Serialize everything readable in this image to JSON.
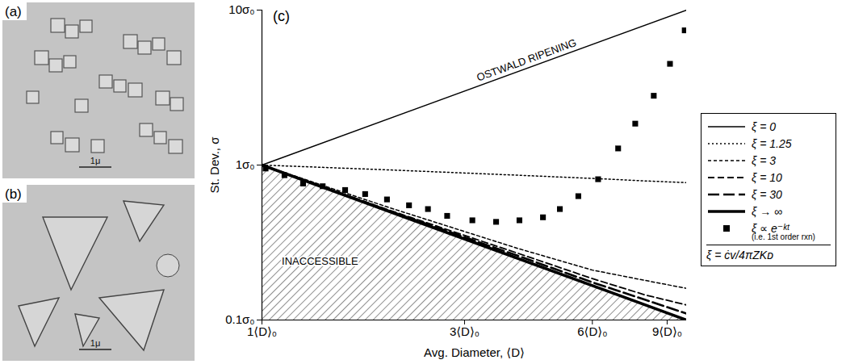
{
  "micrographs": [
    {
      "label": "(a)",
      "scale_bar": "1μ"
    },
    {
      "label": "(b)",
      "scale_bar": "1μ"
    }
  ],
  "chart_data": {
    "type": "line",
    "panel_label": "(c)",
    "x_label": "Avg. Diameter, ⟨D⟩",
    "y_label": "St. Dev., σ",
    "log": true,
    "grid": false,
    "legend": "right",
    "xlim": [
      1,
      10
    ],
    "ylim": [
      0.1,
      10
    ],
    "xticks": [
      {
        "value": 1,
        "label": "1⟨D⟩₀"
      },
      {
        "value": 3,
        "label": "3⟨D⟩₀"
      },
      {
        "value": 6,
        "label": "6⟨D⟩₀"
      },
      {
        "value": 9,
        "label": "9⟨D⟩₀"
      }
    ],
    "yticks": [
      {
        "value": 0.1,
        "label": "0.1σ₀"
      },
      {
        "value": 1,
        "label": "1σ₀"
      },
      {
        "value": 10,
        "label": "10σ₀"
      }
    ],
    "annotations": [
      {
        "text": "OSTWALD RIPENING",
        "x": 4.2,
        "y": 4.75
      },
      {
        "text": "INACCESSIBLE",
        "x": 1.37,
        "y": 0.24
      }
    ],
    "legend_note": "(i.e. 1st order rxn)",
    "legend_formula": "ξ = ċv/4πZKᴅ",
    "series": [
      {
        "name": "ξ = 0",
        "type": "line",
        "color": "#000000",
        "line_style": "solid",
        "x": [
          1,
          10
        ],
        "values": [
          1,
          10
        ]
      },
      {
        "name": "ξ = 1.25",
        "type": "line",
        "color": "#000000",
        "line_style": "dotted",
        "x": [
          1,
          2,
          4,
          6,
          8,
          10
        ],
        "values": [
          1,
          0.93,
          0.86,
          0.82,
          0.79,
          0.77
        ]
      },
      {
        "name": "ξ = 3",
        "type": "line",
        "color": "#000000",
        "line_style": "short-dash",
        "x": [
          1,
          2,
          4,
          6,
          8,
          10
        ],
        "values": [
          1,
          0.53,
          0.29,
          0.21,
          0.18,
          0.16
        ]
      },
      {
        "name": "ξ = 10",
        "type": "line",
        "color": "#000000",
        "line_style": "dash",
        "x": [
          1,
          2,
          4,
          6,
          8,
          10
        ],
        "values": [
          1,
          0.51,
          0.27,
          0.185,
          0.145,
          0.125
        ]
      },
      {
        "name": "ξ = 30",
        "type": "line",
        "color": "#000000",
        "line_style": "long-dash",
        "x": [
          1,
          2,
          4,
          6,
          8,
          10
        ],
        "values": [
          1,
          0.505,
          0.26,
          0.175,
          0.135,
          0.11
        ]
      },
      {
        "name": "ξ → ∞",
        "type": "line",
        "color": "#000000",
        "line_style": "thick",
        "x": [
          1,
          10
        ],
        "values": [
          1,
          0.1
        ]
      },
      {
        "name": "ξ ∝ e⁻ᵏᵗ",
        "type": "scatter",
        "color": "#000000",
        "marker": "square",
        "x": [
          1.02,
          1.13,
          1.25,
          1.39,
          1.57,
          1.75,
          1.97,
          2.22,
          2.46,
          2.73,
          3.13,
          3.56,
          4.04,
          4.59,
          5.03,
          5.56,
          6.19,
          6.9,
          7.57,
          8.37,
          9.14,
          9.9
        ],
        "values": [
          0.95,
          0.86,
          0.76,
          0.73,
          0.69,
          0.65,
          0.6,
          0.55,
          0.52,
          0.47,
          0.44,
          0.43,
          0.44,
          0.46,
          0.52,
          0.63,
          0.81,
          1.28,
          1.85,
          2.8,
          4.5,
          7.4
        ]
      }
    ]
  }
}
